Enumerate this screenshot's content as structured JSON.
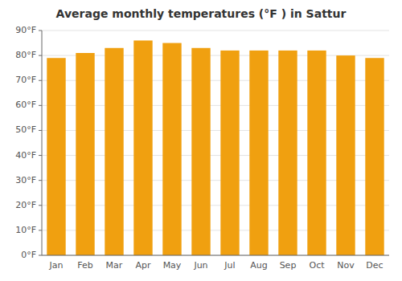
{
  "chart_data": {
    "type": "bar",
    "title": "Average monthly temperatures (°F ) in Sattur",
    "categories": [
      "Jan",
      "Feb",
      "Mar",
      "Apr",
      "May",
      "Jun",
      "Jul",
      "Aug",
      "Sep",
      "Oct",
      "Nov",
      "Dec"
    ],
    "values": [
      79,
      81,
      83,
      86,
      85,
      83,
      82,
      82,
      82,
      82,
      80,
      79
    ],
    "color": "#F0A010",
    "ylim": [
      0,
      90
    ],
    "yticks": [
      {
        "value": 0,
        "label": "0°F"
      },
      {
        "value": 10,
        "label": "10°F"
      },
      {
        "value": 20,
        "label": "20°F"
      },
      {
        "value": 30,
        "label": "30°F"
      },
      {
        "value": 40,
        "label": "40°F"
      },
      {
        "value": 50,
        "label": "50°F"
      },
      {
        "value": 60,
        "label": "60°F"
      },
      {
        "value": 70,
        "label": "70°F"
      },
      {
        "value": 80,
        "label": "80°F"
      },
      {
        "value": 90,
        "label": "90°F"
      }
    ],
    "grid": true
  }
}
